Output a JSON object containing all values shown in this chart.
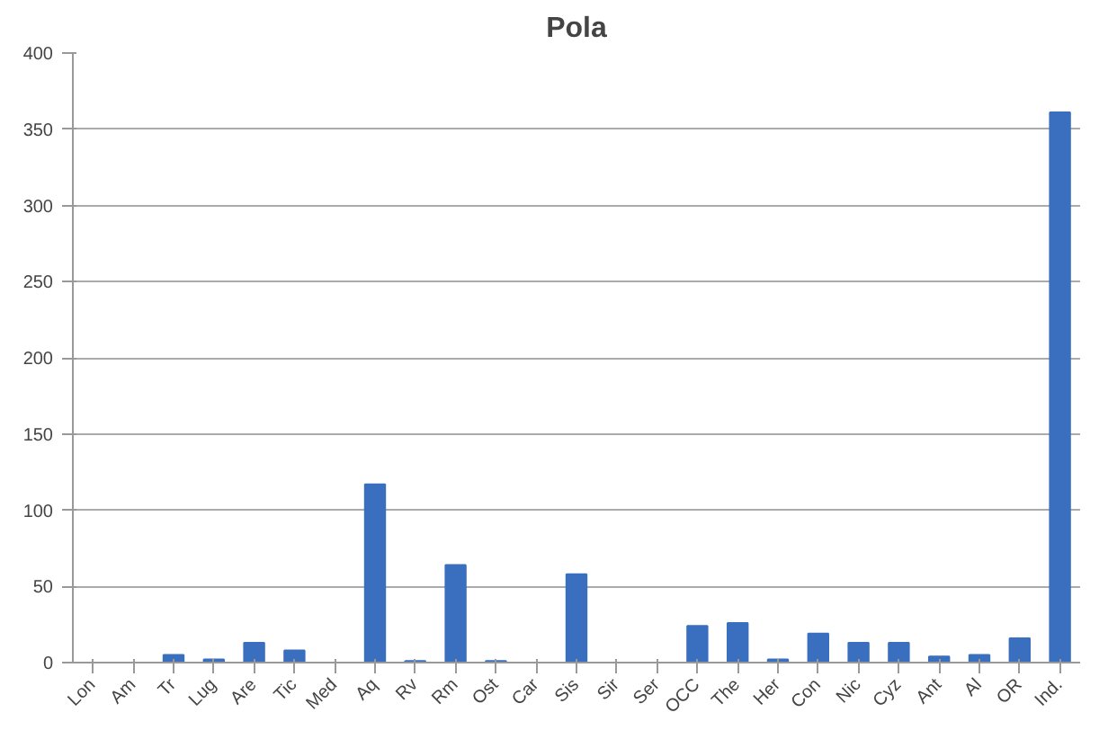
{
  "chart_data": {
    "type": "bar",
    "title": "Pola",
    "categories": [
      "Lon",
      "Am",
      "Tr",
      "Lug",
      "Are",
      "Tic",
      "Med",
      "Aq",
      "Rv",
      "Rm",
      "Ost",
      "Car",
      "Sis",
      "Sir",
      "Ser",
      "OCC",
      "The",
      "Her",
      "Con",
      "Nic",
      "Cyz",
      "Ant",
      "Al",
      "OR",
      "Ind."
    ],
    "values": [
      0,
      0,
      5,
      2,
      13,
      8,
      0,
      117,
      1,
      64,
      1,
      0,
      58,
      0,
      0,
      24,
      26,
      2,
      19,
      13,
      13,
      4,
      5,
      16,
      361
    ],
    "color": "#3a6fbf",
    "ylim": [
      0,
      400
    ],
    "yticks": [
      0,
      50,
      100,
      150,
      200,
      250,
      300,
      350,
      400
    ],
    "grid": "y"
  }
}
